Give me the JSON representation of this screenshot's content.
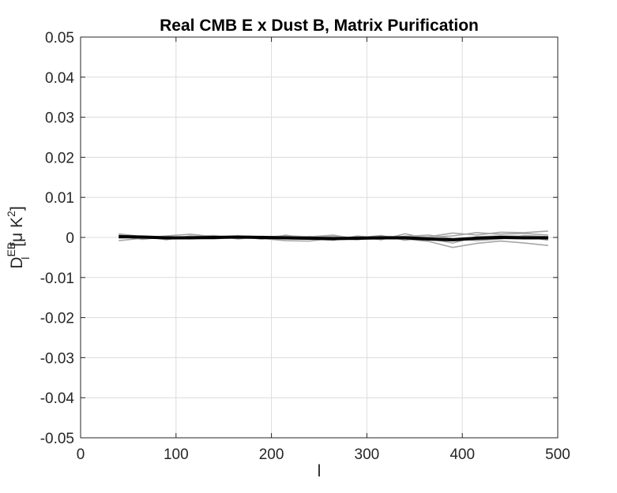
{
  "chart_data": {
    "type": "line",
    "title": "Real CMB E x Dust B, Matrix Purification",
    "xlabel": "l",
    "ylabel": {
      "main": "D",
      "superscript": "EB",
      "subscript": "l",
      "unit_open": "[",
      "unit_mu": "μ",
      "unit_K": " K",
      "unit_power": "2",
      "unit_close": "]"
    },
    "xlim": [
      0,
      500
    ],
    "ylim": [
      -0.05,
      0.05
    ],
    "xticks": [
      0,
      100,
      200,
      300,
      400,
      500
    ],
    "xtick_labels": [
      "0",
      "100",
      "200",
      "300",
      "400",
      "500"
    ],
    "yticks": [
      0.05,
      0.04,
      0.03,
      0.02,
      0.01,
      0,
      -0.01,
      -0.02,
      -0.03,
      -0.04,
      -0.05
    ],
    "ytick_labels": [
      "0.05",
      "0.04",
      "0.03",
      "0.02",
      "0.01",
      "0",
      "-0.01",
      "-0.02",
      "-0.03",
      "-0.04",
      "-0.05"
    ],
    "grid": true,
    "x": [
      40,
      65,
      90,
      115,
      140,
      165,
      190,
      215,
      240,
      265,
      290,
      315,
      340,
      365,
      390,
      415,
      440,
      465,
      490
    ],
    "series": [
      {
        "color": "#000000",
        "values": [
          0.0002,
          0.0001,
          -0.0001,
          -0.0001,
          0.0,
          0.0001,
          0.0,
          -0.0001,
          -0.0002,
          -0.0003,
          -0.0002,
          -0.0001,
          -0.0001,
          -0.0004,
          -0.0006,
          -0.0002,
          0.0,
          -0.0001,
          -0.0001
        ]
      },
      {
        "color": "#a6a6a6",
        "values": [
          0.0009,
          0.0002,
          -0.0004,
          -0.0003,
          0.0003,
          0.0002,
          0.0001,
          0.0004,
          0.0002,
          0.0006,
          -0.0004,
          0.0003,
          0.0001,
          0.0002,
          0.0011,
          0.0006,
          0.0013,
          0.0012,
          0.0016
        ]
      },
      {
        "color": "#a6a6a6",
        "values": [
          -0.0008,
          -0.0002,
          0.0004,
          0.0008,
          0.0002,
          -0.0002,
          0.0003,
          -0.0002,
          0.0003,
          -0.0003,
          0.0002,
          -0.0006,
          0.0009,
          -0.0003,
          -0.0014,
          0.0002,
          0.0004,
          0.0003,
          -0.0007
        ]
      },
      {
        "color": "#a6a6a6",
        "values": [
          0.0004,
          -0.0005,
          0.0002,
          -0.0002,
          -0.0004,
          0.0001,
          -0.0003,
          -0.0008,
          -0.0009,
          -0.0002,
          -0.0006,
          0.0001,
          -0.0004,
          -0.001,
          -0.0025,
          -0.0015,
          -0.0009,
          -0.0014,
          -0.002
        ]
      },
      {
        "color": "#a6a6a6",
        "values": [
          -0.0002,
          0.0003,
          -0.0006,
          0.0004,
          -0.0001,
          0.0004,
          -0.0005,
          0.0006,
          -0.0004,
          -0.0007,
          0.0004,
          -0.0002,
          0.0003,
          0.0006,
          -0.0003,
          -0.0008,
          -0.0004,
          0.0005,
          0.0002
        ]
      },
      {
        "color": "#a6a6a6",
        "values": [
          0.0006,
          -0.0003,
          0.0001,
          0.0002,
          0.0005,
          -0.0004,
          0.0002,
          -0.0003,
          0.0001,
          0.0003,
          -0.0001,
          0.0005,
          -0.0007,
          0.0001,
          0.0004,
          0.0012,
          0.0008,
          0.001,
          0.0006
        ]
      }
    ]
  }
}
